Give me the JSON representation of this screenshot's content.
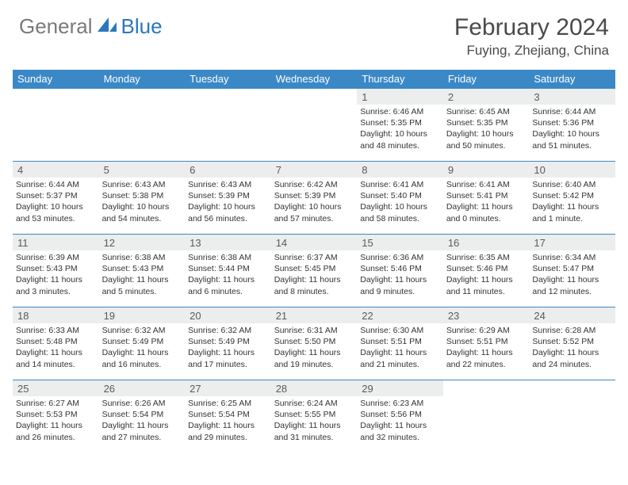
{
  "logo": {
    "text1": "General",
    "text2": "Blue"
  },
  "title": "February 2024",
  "location": "Fuying, Zhejiang, China",
  "colors": {
    "header_bg": "#3b88c7",
    "header_text": "#ffffff",
    "daynum_bg": "#eceded",
    "daynum_text": "#5a5a5a",
    "body_text": "#333333",
    "rule": "#3b88c7",
    "logo_gray": "#7a7a7a",
    "logo_blue": "#2a77bb"
  },
  "day_headers": [
    "Sunday",
    "Monday",
    "Tuesday",
    "Wednesday",
    "Thursday",
    "Friday",
    "Saturday"
  ],
  "weeks": [
    [
      null,
      null,
      null,
      null,
      {
        "n": "1",
        "sr": "6:46 AM",
        "ss": "5:35 PM",
        "dl": "10 hours and 48 minutes."
      },
      {
        "n": "2",
        "sr": "6:45 AM",
        "ss": "5:35 PM",
        "dl": "10 hours and 50 minutes."
      },
      {
        "n": "3",
        "sr": "6:44 AM",
        "ss": "5:36 PM",
        "dl": "10 hours and 51 minutes."
      }
    ],
    [
      {
        "n": "4",
        "sr": "6:44 AM",
        "ss": "5:37 PM",
        "dl": "10 hours and 53 minutes."
      },
      {
        "n": "5",
        "sr": "6:43 AM",
        "ss": "5:38 PM",
        "dl": "10 hours and 54 minutes."
      },
      {
        "n": "6",
        "sr": "6:43 AM",
        "ss": "5:39 PM",
        "dl": "10 hours and 56 minutes."
      },
      {
        "n": "7",
        "sr": "6:42 AM",
        "ss": "5:39 PM",
        "dl": "10 hours and 57 minutes."
      },
      {
        "n": "8",
        "sr": "6:41 AM",
        "ss": "5:40 PM",
        "dl": "10 hours and 58 minutes."
      },
      {
        "n": "9",
        "sr": "6:41 AM",
        "ss": "5:41 PM",
        "dl": "11 hours and 0 minutes."
      },
      {
        "n": "10",
        "sr": "6:40 AM",
        "ss": "5:42 PM",
        "dl": "11 hours and 1 minute."
      }
    ],
    [
      {
        "n": "11",
        "sr": "6:39 AM",
        "ss": "5:43 PM",
        "dl": "11 hours and 3 minutes."
      },
      {
        "n": "12",
        "sr": "6:38 AM",
        "ss": "5:43 PM",
        "dl": "11 hours and 5 minutes."
      },
      {
        "n": "13",
        "sr": "6:38 AM",
        "ss": "5:44 PM",
        "dl": "11 hours and 6 minutes."
      },
      {
        "n": "14",
        "sr": "6:37 AM",
        "ss": "5:45 PM",
        "dl": "11 hours and 8 minutes."
      },
      {
        "n": "15",
        "sr": "6:36 AM",
        "ss": "5:46 PM",
        "dl": "11 hours and 9 minutes."
      },
      {
        "n": "16",
        "sr": "6:35 AM",
        "ss": "5:46 PM",
        "dl": "11 hours and 11 minutes."
      },
      {
        "n": "17",
        "sr": "6:34 AM",
        "ss": "5:47 PM",
        "dl": "11 hours and 12 minutes."
      }
    ],
    [
      {
        "n": "18",
        "sr": "6:33 AM",
        "ss": "5:48 PM",
        "dl": "11 hours and 14 minutes."
      },
      {
        "n": "19",
        "sr": "6:32 AM",
        "ss": "5:49 PM",
        "dl": "11 hours and 16 minutes."
      },
      {
        "n": "20",
        "sr": "6:32 AM",
        "ss": "5:49 PM",
        "dl": "11 hours and 17 minutes."
      },
      {
        "n": "21",
        "sr": "6:31 AM",
        "ss": "5:50 PM",
        "dl": "11 hours and 19 minutes."
      },
      {
        "n": "22",
        "sr": "6:30 AM",
        "ss": "5:51 PM",
        "dl": "11 hours and 21 minutes."
      },
      {
        "n": "23",
        "sr": "6:29 AM",
        "ss": "5:51 PM",
        "dl": "11 hours and 22 minutes."
      },
      {
        "n": "24",
        "sr": "6:28 AM",
        "ss": "5:52 PM",
        "dl": "11 hours and 24 minutes."
      }
    ],
    [
      {
        "n": "25",
        "sr": "6:27 AM",
        "ss": "5:53 PM",
        "dl": "11 hours and 26 minutes."
      },
      {
        "n": "26",
        "sr": "6:26 AM",
        "ss": "5:54 PM",
        "dl": "11 hours and 27 minutes."
      },
      {
        "n": "27",
        "sr": "6:25 AM",
        "ss": "5:54 PM",
        "dl": "11 hours and 29 minutes."
      },
      {
        "n": "28",
        "sr": "6:24 AM",
        "ss": "5:55 PM",
        "dl": "11 hours and 31 minutes."
      },
      {
        "n": "29",
        "sr": "6:23 AM",
        "ss": "5:56 PM",
        "dl": "11 hours and 32 minutes."
      },
      null,
      null
    ]
  ],
  "labels": {
    "sunrise": "Sunrise:",
    "sunset": "Sunset:",
    "daylight": "Daylight:"
  }
}
